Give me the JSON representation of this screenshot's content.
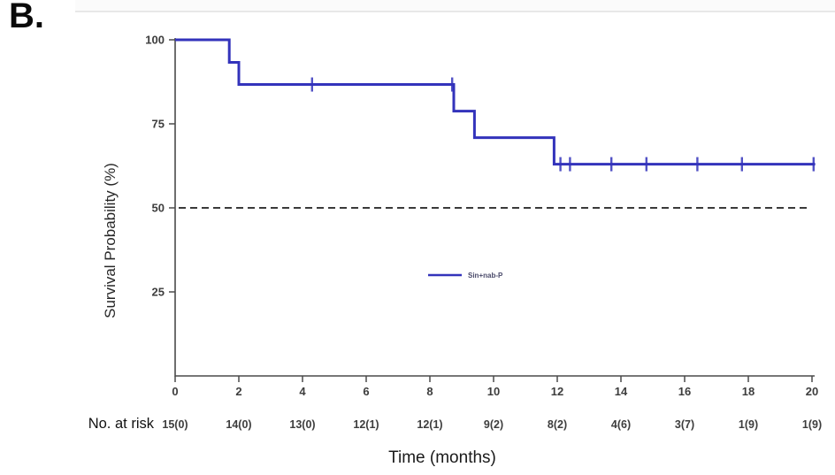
{
  "panel_label": "B.",
  "colors": {
    "curve": "#3333bb",
    "reference": "#3a3a3a",
    "axis": "#4a4a4a",
    "text": "#3d3d3d"
  },
  "chart_data": {
    "type": "line",
    "subtype": "kaplan-meier-step",
    "title": "",
    "xlabel": "Time (months)",
    "ylabel": "Survival Probability (%)",
    "xlim": [
      0,
      20
    ],
    "ylim": [
      0,
      100
    ],
    "x_ticks": [
      0,
      2,
      4,
      6,
      8,
      10,
      12,
      14,
      16,
      18,
      20
    ],
    "y_ticks": [
      25,
      50,
      75,
      100
    ],
    "grid": "off",
    "legend_position": "center",
    "series": [
      {
        "name": "Sin+nab-P",
        "color": "#3333bb",
        "steps": [
          [
            0,
            100
          ],
          [
            1.7,
            100
          ],
          [
            1.7,
            93.3
          ],
          [
            2.0,
            93.3
          ],
          [
            2.0,
            86.7
          ],
          [
            8.75,
            86.7
          ],
          [
            8.75,
            78.8
          ],
          [
            9.4,
            78.8
          ],
          [
            9.4,
            70.9
          ],
          [
            11.9,
            70.9
          ],
          [
            11.9,
            63.0
          ],
          [
            20.1,
            63.0
          ]
        ],
        "censor_marks": [
          [
            4.3,
            86.7
          ],
          [
            8.7,
            86.7
          ],
          [
            12.1,
            63.0
          ],
          [
            12.4,
            63.0
          ],
          [
            13.7,
            63.0
          ],
          [
            14.8,
            63.0
          ],
          [
            16.4,
            63.0
          ],
          [
            17.8,
            63.0
          ],
          [
            20.05,
            63.0
          ]
        ]
      }
    ],
    "reference_line": {
      "y": 50,
      "style": "dashed"
    },
    "legend": {
      "label": "Sin+nab-P"
    },
    "risk_table": {
      "label": "No. at risk",
      "values": [
        "15(0)",
        "14(0)",
        "13(0)",
        "12(1)",
        "12(1)",
        "9(2)",
        "8(2)",
        "4(6)",
        "3(7)",
        "1(9)",
        "1(9)"
      ]
    }
  }
}
